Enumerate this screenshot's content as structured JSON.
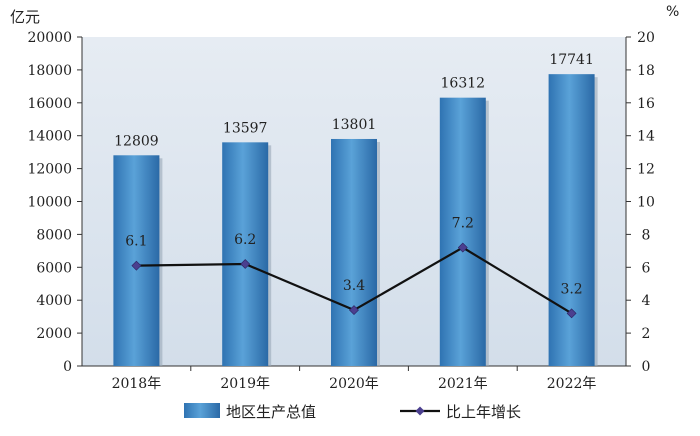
{
  "chart_data": {
    "type": "bar",
    "categories": [
      "2018年",
      "2019年",
      "2020年",
      "2021年",
      "2022年"
    ],
    "y_left": {
      "unit": "亿元",
      "range": [
        0,
        20000
      ],
      "ticks": [
        0,
        2000,
        4000,
        6000,
        8000,
        10000,
        12000,
        14000,
        16000,
        18000,
        20000
      ]
    },
    "y_right": {
      "unit": "%",
      "range": [
        0,
        20
      ],
      "ticks": [
        0,
        2,
        4,
        6,
        8,
        10,
        12,
        14,
        16,
        18,
        20
      ]
    },
    "series": [
      {
        "name": "地区生产总值",
        "type": "bar",
        "axis": "left",
        "values": [
          12809,
          13597,
          13801,
          16312,
          17741
        ],
        "color": "#4f97cf"
      },
      {
        "name": "比上年增长",
        "type": "line",
        "axis": "right",
        "values": [
          6.1,
          6.2,
          3.4,
          7.2,
          3.2
        ],
        "color": "#111111",
        "marker_color": "#4b3f8f"
      }
    ],
    "legend_position": "bottom",
    "background_color": "#dde6f0"
  }
}
